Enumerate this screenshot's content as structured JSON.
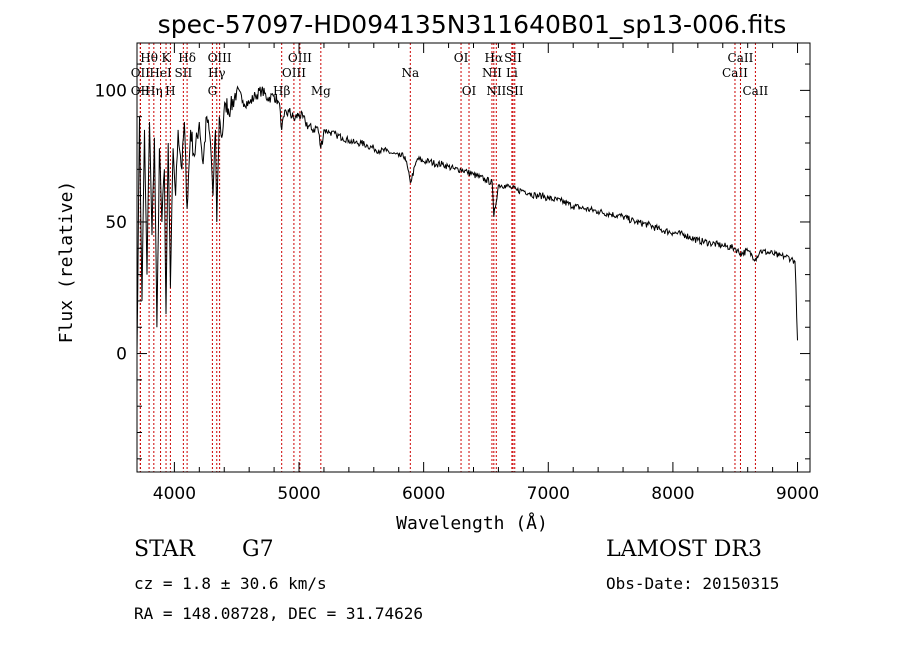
{
  "chart_data": {
    "type": "line",
    "title": "spec-57097-HD094135N311640B01_sp13-006.fits",
    "xlabel": "Wavelength (Å)",
    "ylabel": "Flux (relative)",
    "xlim": [
      3700,
      9100
    ],
    "ylim": [
      -45,
      118
    ],
    "xticks": [
      4000,
      5000,
      6000,
      7000,
      8000,
      9000
    ],
    "xtick_labels": [
      "4000",
      "5000",
      "6000",
      "7000",
      "8000",
      "9000"
    ],
    "yticks": [
      0,
      50,
      100
    ],
    "ytick_labels": [
      "0",
      "50",
      "100"
    ],
    "series": [
      {
        "name": "flux",
        "x": [
          3700,
          3720,
          3740,
          3760,
          3780,
          3800,
          3820,
          3840,
          3860,
          3880,
          3900,
          3920,
          3933,
          3950,
          3968,
          3990,
          4010,
          4030,
          4060,
          4080,
          4102,
          4130,
          4160,
          4200,
          4230,
          4260,
          4290,
          4310,
          4330,
          4340,
          4360,
          4380,
          4410,
          4450,
          4500,
          4550,
          4600,
          4650,
          4700,
          4750,
          4800,
          4830,
          4850,
          4861,
          4880,
          4920,
          4960,
          5000,
          5050,
          5100,
          5150,
          5175,
          5200,
          5250,
          5300,
          5350,
          5400,
          5450,
          5500,
          5550,
          5600,
          5650,
          5700,
          5750,
          5800,
          5850,
          5893,
          5950,
          6000,
          6050,
          6100,
          6150,
          6200,
          6250,
          6300,
          6350,
          6400,
          6450,
          6500,
          6550,
          6563,
          6600,
          6650,
          6700,
          6750,
          6800,
          6850,
          6900,
          6950,
          7000,
          7100,
          7200,
          7300,
          7400,
          7500,
          7600,
          7700,
          7800,
          7900,
          8000,
          8100,
          8200,
          8300,
          8400,
          8498,
          8542,
          8600,
          8662,
          8700,
          8800,
          8850,
          8900,
          8950,
          8980,
          9000
        ],
        "y": [
          0,
          90,
          20,
          85,
          30,
          88,
          45,
          82,
          10,
          78,
          50,
          70,
          15,
          80,
          25,
          78,
          60,
          85,
          70,
          88,
          55,
          85,
          75,
          88,
          72,
          90,
          80,
          60,
          85,
          50,
          90,
          82,
          95,
          93,
          100,
          96,
          95,
          98,
          100,
          97,
          98,
          96,
          92,
          85,
          90,
          92,
          89,
          91,
          88,
          85,
          86,
          78,
          85,
          84,
          83,
          82,
          81,
          80,
          80,
          79,
          78,
          77,
          77,
          76,
          75,
          75,
          65,
          74,
          73,
          73,
          72,
          72,
          71,
          70,
          70,
          69,
          68,
          67,
          66,
          65,
          52,
          64,
          64,
          63,
          62,
          62,
          61,
          60,
          60,
          59,
          58,
          56,
          55,
          54,
          53,
          52,
          50,
          49,
          47,
          46,
          45,
          43,
          42,
          41,
          40,
          38,
          39,
          36,
          39,
          38,
          37,
          37,
          36,
          35,
          5
        ]
      }
    ],
    "lines": [
      {
        "name": "OII",
        "wavelength": 3727,
        "row": 2
      },
      {
        "name": "OII",
        "wavelength": 3727,
        "row": 3
      },
      {
        "name": "Hθ",
        "wavelength": 3797,
        "row": 1
      },
      {
        "name": "Hη",
        "wavelength": 3835,
        "row": 3
      },
      {
        "name": "HeI",
        "wavelength": 3889,
        "row": 2
      },
      {
        "name": "K",
        "wavelength": 3933,
        "row": 1
      },
      {
        "name": "H",
        "wavelength": 3968,
        "row": 3
      },
      {
        "name": "SII",
        "wavelength": 4072,
        "row": 2
      },
      {
        "name": "Hδ",
        "wavelength": 4102,
        "row": 1
      },
      {
        "name": "G",
        "wavelength": 4305,
        "row": 3
      },
      {
        "name": "Hγ",
        "wavelength": 4340,
        "row": 2
      },
      {
        "name": "OIII",
        "wavelength": 4363,
        "row": 1
      },
      {
        "name": "Hβ",
        "wavelength": 4861,
        "row": 3
      },
      {
        "name": "OIII",
        "wavelength": 4959,
        "row": 2
      },
      {
        "name": "OIII",
        "wavelength": 5007,
        "row": 1
      },
      {
        "name": "Mg",
        "wavelength": 5175,
        "row": 3
      },
      {
        "name": "Na",
        "wavelength": 5893,
        "row": 2
      },
      {
        "name": "OI",
        "wavelength": 6300,
        "row": 1
      },
      {
        "name": "OI",
        "wavelength": 6364,
        "row": 3
      },
      {
        "name": "NII",
        "wavelength": 6548,
        "row": 2
      },
      {
        "name": "Hα",
        "wavelength": 6563,
        "row": 1
      },
      {
        "name": "NII",
        "wavelength": 6583,
        "row": 3
      },
      {
        "name": "Li",
        "wavelength": 6708,
        "row": 2
      },
      {
        "name": "SII",
        "wavelength": 6717,
        "row": 1
      },
      {
        "name": "SII",
        "wavelength": 6731,
        "row": 3
      },
      {
        "name": "CaII",
        "wavelength": 8498,
        "row": 2
      },
      {
        "name": "CaII",
        "wavelength": 8542,
        "row": 1
      },
      {
        "name": "CaII",
        "wavelength": 8662,
        "row": 3
      }
    ],
    "line_color": "#cc0000"
  },
  "info": {
    "object_class": "STAR",
    "subclass": "G7",
    "survey": "LAMOST DR3",
    "redshift": "cz = 1.8 ± 30.6 km/s",
    "obs_date": "Obs-Date: 20150315",
    "coords": "RA = 148.08728, DEC =  31.74626"
  }
}
